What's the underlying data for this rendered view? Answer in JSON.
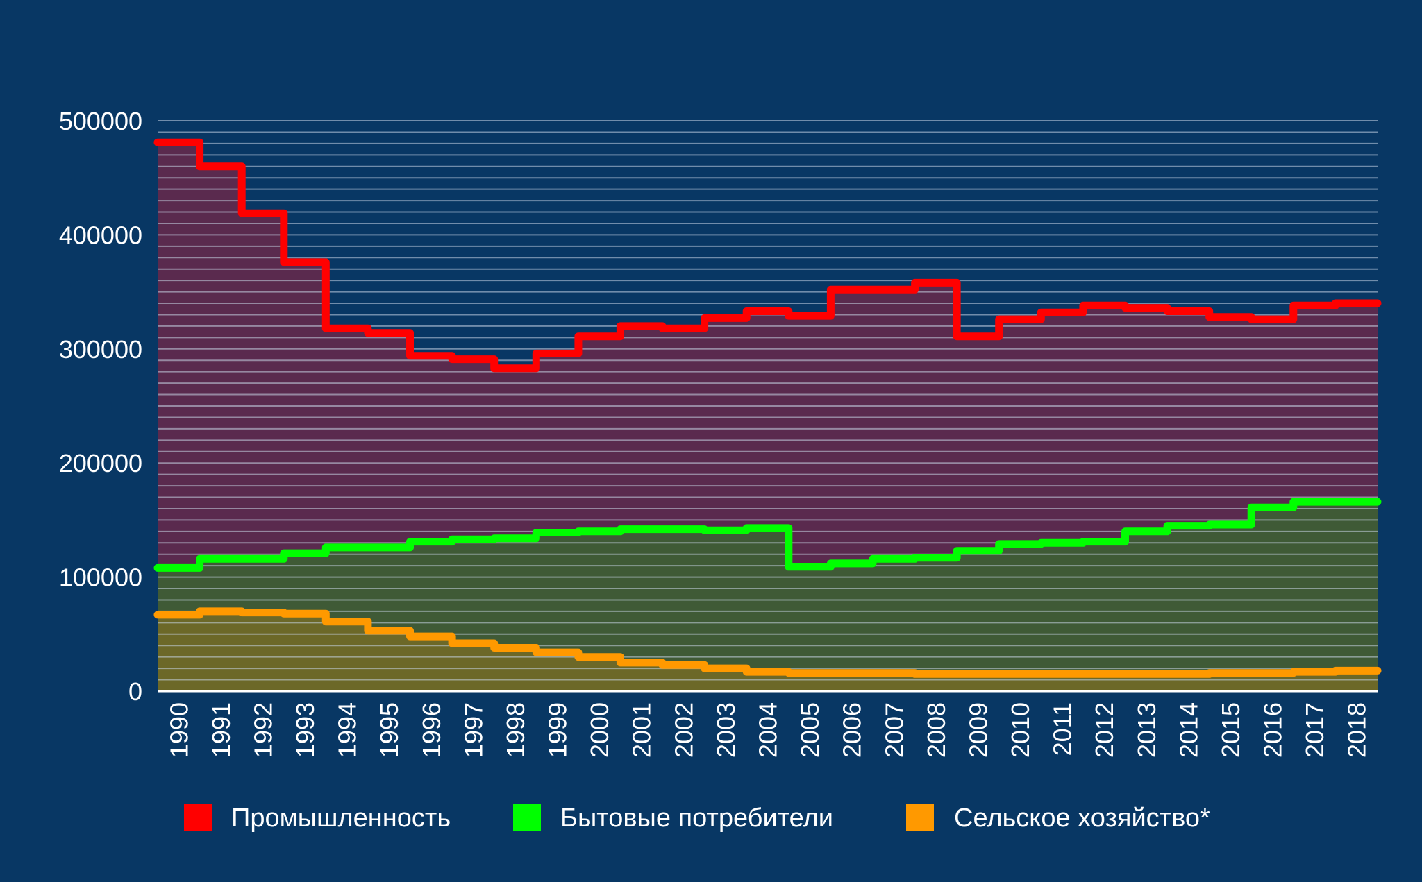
{
  "colors": {
    "background": "#083764",
    "industry": "#ff0000",
    "household": "#00ff00",
    "agriculture": "#ff9900",
    "industry_fill": "#5a2a4e",
    "household_fill": "#3f5a36",
    "agriculture_fill": "#6c6828"
  },
  "chart_data": {
    "type": "area",
    "style": "stepped lines with filled areas",
    "title": "",
    "xlabel": "",
    "ylabel": "",
    "ylim": [
      0,
      500000
    ],
    "yticks": [
      0,
      100000,
      200000,
      300000,
      400000,
      500000
    ],
    "ytick_labels": [
      "0",
      "100000",
      "200000",
      "300000",
      "400000",
      "500000"
    ],
    "grid": "horizontal lines",
    "legend_position": "bottom",
    "categories": [
      "1990",
      "1991",
      "1992",
      "1993",
      "1994",
      "1995",
      "1996",
      "1997",
      "1998",
      "1999",
      "2000",
      "2001",
      "2002",
      "2003",
      "2004",
      "2005",
      "2006",
      "2007",
      "2008",
      "2009",
      "2010",
      "2011",
      "2012",
      "2013",
      "2014",
      "2015",
      "2016",
      "2017",
      "2018"
    ],
    "series": [
      {
        "name": "Промышленность",
        "color": "#ff0000",
        "values": [
          481000,
          460000,
          419000,
          376000,
          318000,
          314000,
          294000,
          291000,
          283000,
          296000,
          311000,
          320000,
          318000,
          327000,
          333000,
          329000,
          352000,
          352000,
          358000,
          311000,
          326000,
          332000,
          338000,
          336000,
          333000,
          328000,
          326000,
          338000,
          340000
        ]
      },
      {
        "name": "Бытовые потребители",
        "color": "#00ff00",
        "values": [
          108000,
          116000,
          116000,
          121000,
          126000,
          126000,
          131000,
          133000,
          134000,
          139000,
          140000,
          142000,
          142000,
          141000,
          143000,
          109000,
          112000,
          116000,
          117000,
          123000,
          129000,
          130000,
          131000,
          140000,
          145000,
          146000,
          161000,
          166000,
          166000
        ]
      },
      {
        "name": "Сельское хозяйство*",
        "color": "#ff9900",
        "values": [
          67000,
          70000,
          69000,
          68000,
          61000,
          53000,
          48000,
          42000,
          38000,
          34000,
          30000,
          25000,
          23000,
          20000,
          17000,
          16000,
          16000,
          16000,
          15000,
          15000,
          15000,
          15000,
          15000,
          15000,
          15000,
          16000,
          16000,
          17000,
          18000
        ]
      }
    ]
  }
}
